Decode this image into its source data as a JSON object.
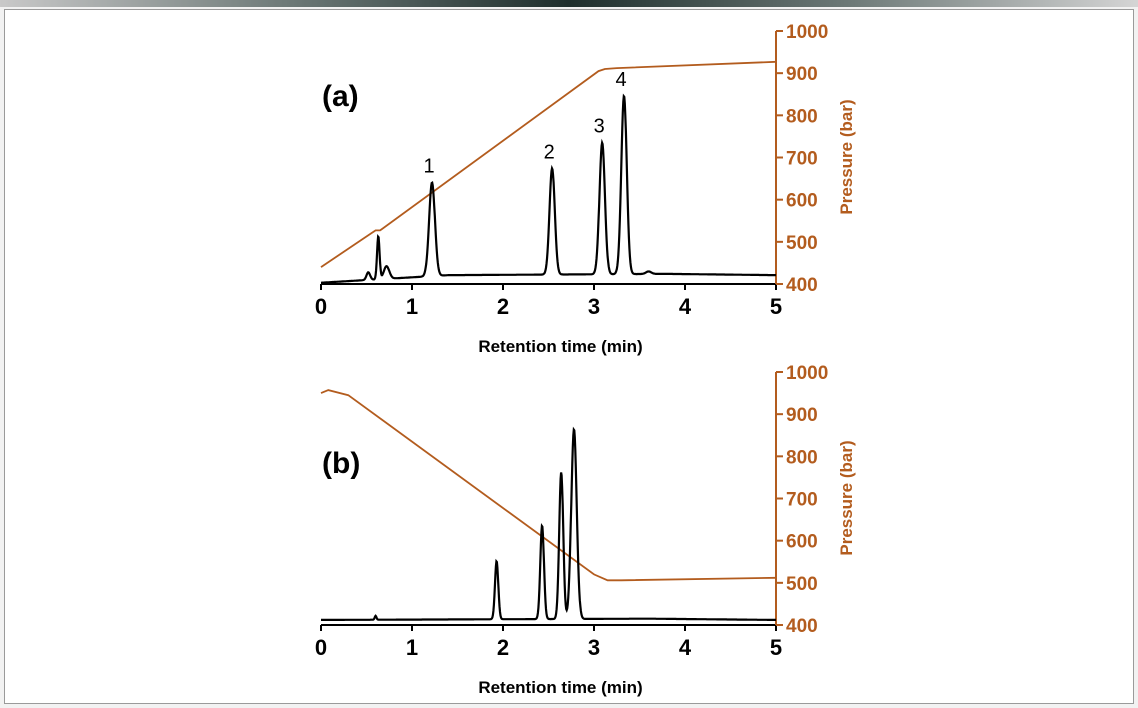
{
  "colors": {
    "signal": "#000000",
    "pressure": "#b35c1e",
    "frame_border": "#9a9a9a",
    "background": "#ffffff"
  },
  "chart_data": [
    {
      "type": "line",
      "panel_label": "(a)",
      "xlabel": "Retention time (min)",
      "ylabel_right": "Pressure (bar)",
      "xlim": [
        0,
        5
      ],
      "xticks": [
        "0",
        "1",
        "2",
        "3",
        "4",
        "5"
      ],
      "ylim_right": [
        400,
        1000
      ],
      "yticks_right": [
        "400",
        "500",
        "600",
        "700",
        "800",
        "900",
        "1000"
      ],
      "peak_labels": [
        {
          "text": "1",
          "x": 1.22
        },
        {
          "text": "2",
          "x": 2.54
        },
        {
          "text": "3",
          "x": 3.09
        },
        {
          "text": "4",
          "x": 3.33
        }
      ],
      "series": [
        {
          "name": "Pressure",
          "axis": "right",
          "x": [
            0,
            0.55,
            0.6,
            0.65,
            3.05,
            3.12,
            3.25,
            5
          ],
          "y": [
            440,
            520,
            527,
            527,
            905,
            910,
            912,
            927
          ]
        },
        {
          "name": "Signal",
          "axis": "signal",
          "baseline": 0.02,
          "baseline_x": [
            0,
            1.4,
            3.8,
            5
          ],
          "baseline_y": [
            0.005,
            0.035,
            0.04,
            0.035
          ],
          "peaks": [
            {
              "x": 0.52,
              "h": 0.03,
              "w": 0.02
            },
            {
              "x": 0.63,
              "h": 0.17,
              "w": 0.014
            },
            {
              "x": 0.72,
              "h": 0.05,
              "w": 0.03
            },
            {
              "x": 1.22,
              "h": 0.37,
              "w": 0.032
            },
            {
              "x": 2.54,
              "h": 0.42,
              "w": 0.029
            },
            {
              "x": 3.09,
              "h": 0.52,
              "w": 0.03
            },
            {
              "x": 3.33,
              "h": 0.705,
              "w": 0.03
            },
            {
              "x": 3.6,
              "h": 0.01,
              "w": 0.03
            }
          ]
        }
      ]
    },
    {
      "type": "line",
      "panel_label": "(b)",
      "xlabel": "Retention time (min)",
      "ylabel_right": "Pressure (bar)",
      "xlim": [
        0,
        5
      ],
      "xticks": [
        "0",
        "1",
        "2",
        "3",
        "4",
        "5"
      ],
      "ylim_right": [
        400,
        1000
      ],
      "yticks_right": [
        "400",
        "500",
        "600",
        "700",
        "800",
        "900",
        "1000"
      ],
      "series": [
        {
          "name": "Pressure",
          "axis": "right",
          "x": [
            0,
            0.08,
            0.3,
            3.0,
            3.15,
            3.3,
            5
          ],
          "y": [
            950,
            957,
            945,
            520,
            506,
            506,
            512
          ]
        },
        {
          "name": "Signal",
          "axis": "signal",
          "baseline_x": [
            0,
            3.6,
            5
          ],
          "baseline_y": [
            0.02,
            0.025,
            0.02
          ],
          "peaks": [
            {
              "x": 0.6,
              "h": 0.015,
              "w": 0.01
            },
            {
              "x": 1.93,
              "h": 0.23,
              "w": 0.018
            },
            {
              "x": 2.43,
              "h": 0.37,
              "w": 0.02
            },
            {
              "x": 2.64,
              "h": 0.58,
              "w": 0.022
            },
            {
              "x": 2.78,
              "h": 0.75,
              "w": 0.03
            }
          ]
        }
      ]
    }
  ]
}
